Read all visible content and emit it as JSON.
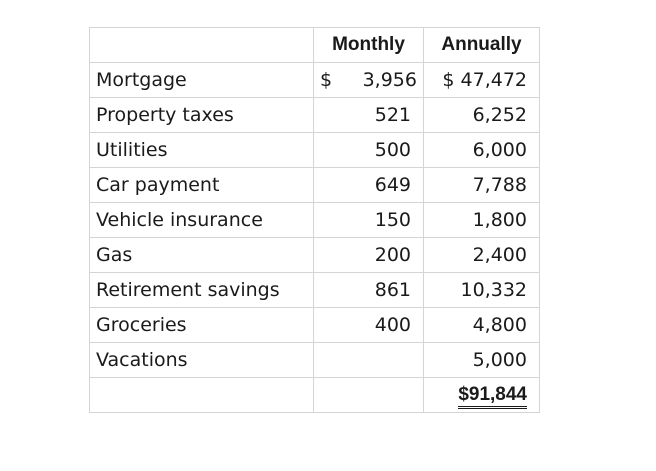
{
  "header": {
    "monthly": "Monthly",
    "annually": "Annually"
  },
  "rows": [
    {
      "label": "Mortgage",
      "monthly_currency": "$",
      "monthly": "3,956",
      "annually": "$ 47,472"
    },
    {
      "label": "Property taxes",
      "monthly": "521",
      "annually": "6,252"
    },
    {
      "label": "Utilities",
      "monthly": "500",
      "annually": "6,000"
    },
    {
      "label": "Car payment",
      "monthly": "649",
      "annually": "7,788"
    },
    {
      "label": "Vehicle insurance",
      "monthly": "150",
      "annually": "1,800"
    },
    {
      "label": "Gas",
      "monthly": "200",
      "annually": "2,400"
    },
    {
      "label": "Retirement savings",
      "monthly": "861",
      "annually": "10,332"
    },
    {
      "label": "Groceries",
      "monthly": "400",
      "annually": "4,800"
    },
    {
      "label": "Vacations",
      "monthly": "",
      "annually": "5,000"
    }
  ],
  "total": {
    "annually": "$91,844"
  }
}
